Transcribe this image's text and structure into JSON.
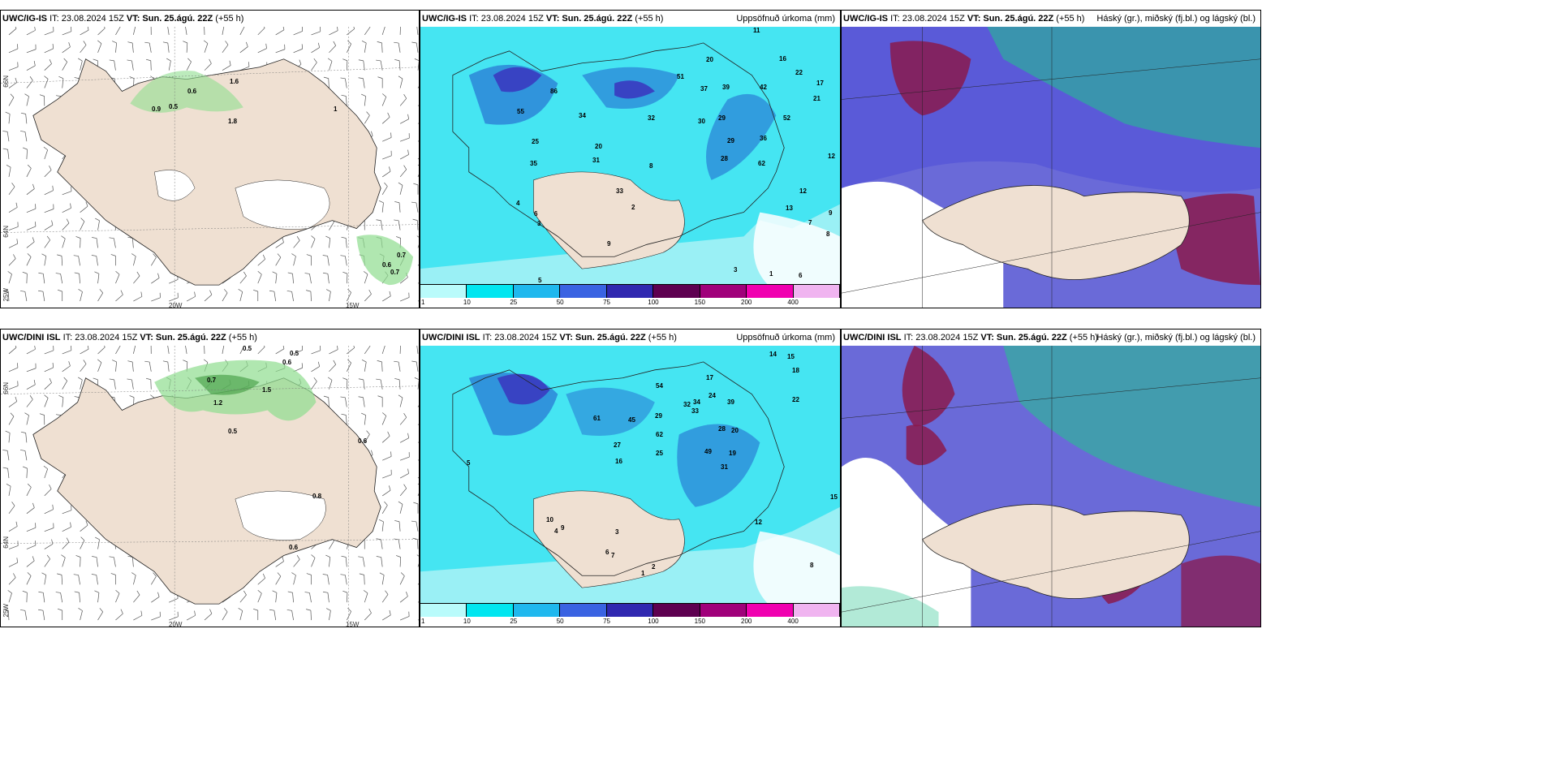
{
  "panels": {
    "p1": {
      "model": "UWC/IG-IS",
      "it": "IT: 23.08.2024 15Z",
      "vt_label": "VT:",
      "vt": "Sun. 25.ágú. 22Z",
      "lead": "(+55 h)",
      "right_title": "",
      "labels": [
        "0.9",
        "0.5",
        "0.6",
        "1.6",
        "1.8",
        "1",
        "0.7",
        "0.6",
        "0.7"
      ]
    },
    "p2": {
      "model": "UWC/IG-IS",
      "it": "IT: 23.08.2024 15Z",
      "vt_label": "VT:",
      "vt": "Sun. 25.ágú. 22Z",
      "lead": "(+55 h)",
      "right_title": "Uppsöfnuð úrkoma (mm)",
      "labels": [
        "11",
        "20",
        "16",
        "22",
        "17",
        "21",
        "51",
        "37",
        "39",
        "42",
        "86",
        "34",
        "32",
        "29",
        "36",
        "52",
        "12",
        "55",
        "20",
        "30",
        "29",
        "8",
        "28",
        "25",
        "31",
        "35",
        "62",
        "4",
        "6",
        "3",
        "2",
        "9",
        "5",
        "33",
        "12",
        "13",
        "9",
        "7",
        "8",
        "3",
        "1",
        "6"
      ]
    },
    "p3": {
      "model": "UWC/IG-IS",
      "it": "IT: 23.08.2024 15Z",
      "vt_label": "VT:",
      "vt": "Sun. 25.ágú. 22Z",
      "lead": "(+55 h)",
      "right_title": "Háský (gr.), miðský (fj.bl.) og lágský (bl.)",
      "labels": []
    },
    "p4": {
      "model": "UWC/DINI ISL",
      "it": "IT: 23.08.2024 15Z",
      "vt_label": "VT:",
      "vt": "Sun. 25.ágú. 22Z",
      "lead": "(+55 h)",
      "right_title": "",
      "labels": [
        "0.5",
        "0.5",
        "0.6",
        "0.7",
        "1.5",
        "1.2",
        "0.5",
        "0.6",
        "0.8",
        "0.6"
      ]
    },
    "p5": {
      "model": "UWC/DINI ISL",
      "it": "IT: 23.08.2024 15Z",
      "vt_label": "VT:",
      "vt": "Sun. 25.ágú. 22Z",
      "lead": "(+55 h)",
      "right_title": "Uppsöfnuð úrkoma (mm)",
      "labels": [
        "14",
        "15",
        "18",
        "22",
        "17",
        "54",
        "24",
        "34",
        "39",
        "32",
        "33",
        "28",
        "20",
        "45",
        "61",
        "27",
        "29",
        "62",
        "49",
        "19",
        "31",
        "25",
        "16",
        "3",
        "5",
        "6",
        "10",
        "4",
        "7",
        "2",
        "1",
        "9",
        "12",
        "15",
        "8"
      ]
    },
    "p6": {
      "model": "UWC/DINI ISL",
      "it": "IT: 23.08.2024 15Z",
      "vt_label": "VT:",
      "vt": "Sun. 25.ágú. 22Z",
      "lead": "(+55 h)",
      "right_title": "Háský (gr.), miðský (fj.bl.) og lágský (bl.)",
      "labels": []
    }
  },
  "axes": {
    "lon_20": "20W",
    "lon_15": "15W",
    "lat_66": "66N",
    "lat_64": "64N",
    "lon_25": "25W"
  },
  "colorbar": {
    "ticks": [
      "1",
      "10",
      "25",
      "50",
      "75",
      "100",
      "150",
      "200",
      "400"
    ],
    "colors": [
      "#b9fbfb",
      "#00e6f0",
      "#1fb8ee",
      "#3a63e2",
      "#3028b0",
      "#5e0050",
      "#a0007a",
      "#f000b0",
      "#f0b4f0"
    ]
  },
  "colors": {
    "land": "#efe0d2",
    "precip_light": "#9af0f5",
    "precip_mid": "#00dcee",
    "precip_heavy": "#2a7fd6",
    "precip_intense": "#3a3ac0",
    "cloud_high": "#21c48d",
    "cloud_mid": "#8a1a4e",
    "cloud_low": "#5a5ad8",
    "green_precip": "#8fdd8f"
  }
}
